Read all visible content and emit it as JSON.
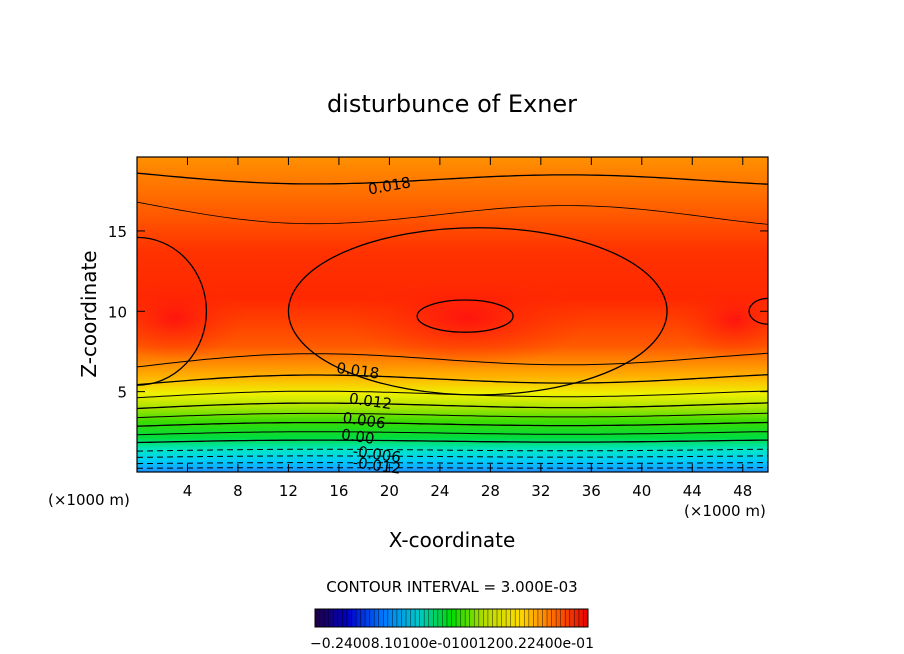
{
  "chart_data": {
    "type": "contour",
    "title": "disturbunce of Exner",
    "xlabel": "X-coordinate",
    "ylabel": "Z-coordinate",
    "x_unit_left": "(×1000 m)",
    "x_unit_right": "(×1000 m)",
    "xlim": [
      0,
      50
    ],
    "ylim": [
      0,
      19.6
    ],
    "xticks": [
      4,
      8,
      12,
      16,
      20,
      24,
      28,
      32,
      36,
      40,
      44,
      48
    ],
    "yticks": [
      5,
      10,
      15
    ],
    "contour_interval_text": "CONTOUR INTERVAL = 3.000E-03",
    "contour_labels": [
      {
        "text": "0.018",
        "x": 20,
        "z": 17.8
      },
      {
        "text": "0.018",
        "x": 17.5,
        "z": 6.3
      },
      {
        "text": "0.012",
        "x": 18.5,
        "z": 4.4
      },
      {
        "text": "0.006",
        "x": 18,
        "z": 3.2
      },
      {
        "text": "0.00",
        "x": 17.5,
        "z": 2.2
      },
      {
        "text": "-0.006",
        "x": 19,
        "z": 1.1
      },
      {
        "text": "-0.012",
        "x": 19,
        "z": 0.4
      }
    ],
    "colorbar_tick_text": "−0.24008.10100e-01001200.22400e-01",
    "grid": false,
    "legend": "colorbar below plot"
  }
}
